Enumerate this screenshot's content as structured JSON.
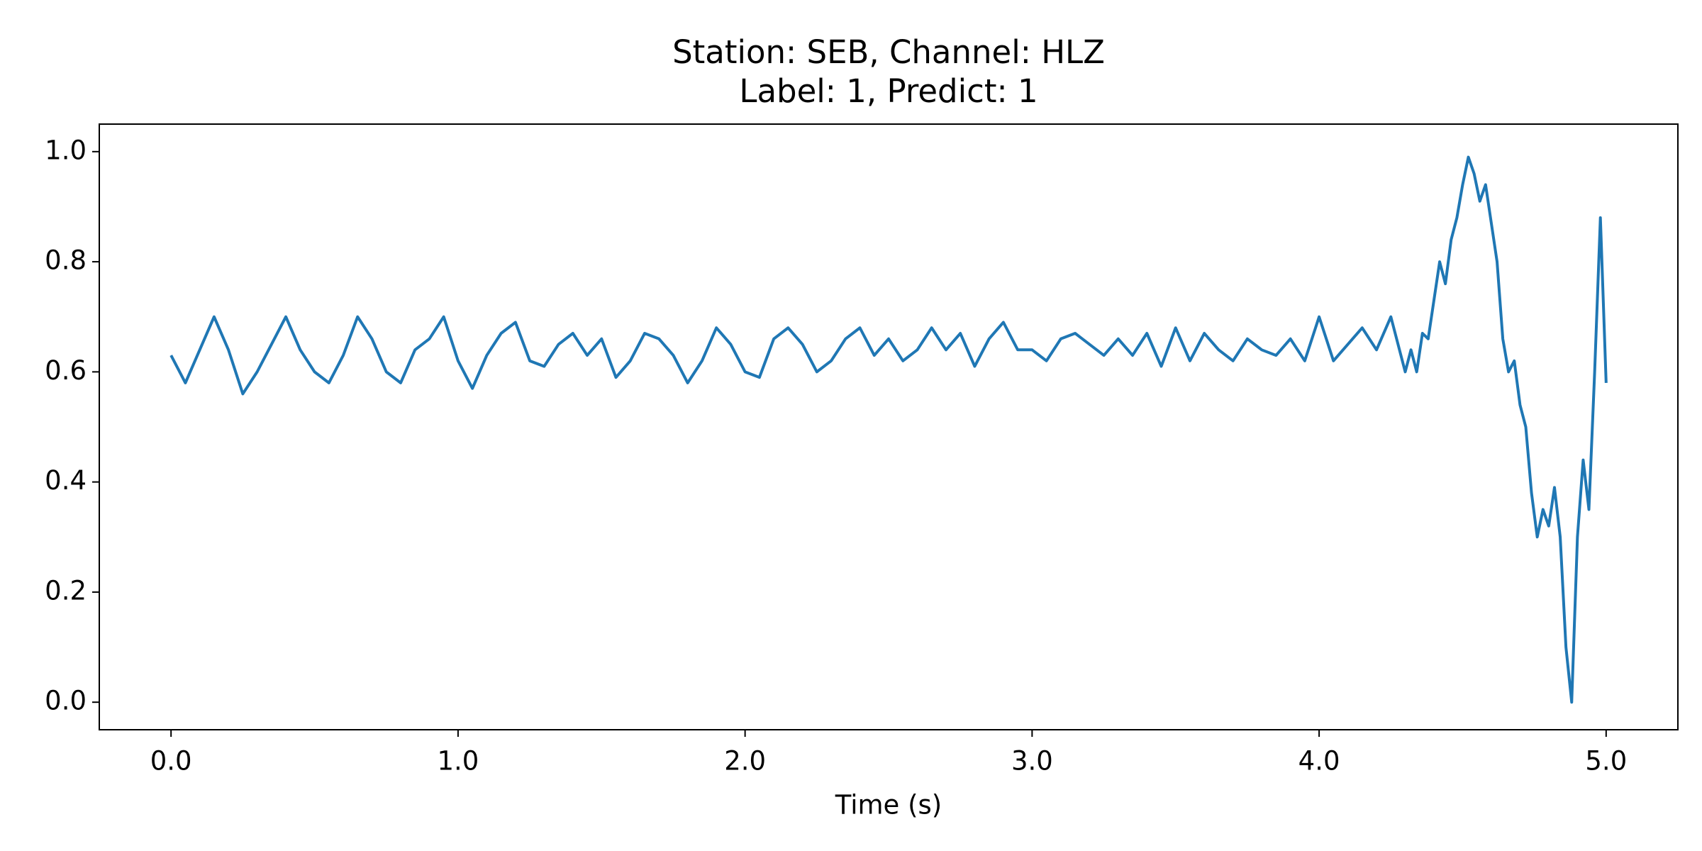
{
  "chart_data": {
    "type": "line",
    "title": "Station: SEB, Channel: HLZ",
    "subtitle": "Label: 1, Predict: 1",
    "x_label": "Time (s)",
    "xlim": [
      -0.25,
      5.25
    ],
    "ylim": [
      -0.05,
      1.05
    ],
    "xticks": [
      {
        "value": 0,
        "label": "0.0"
      },
      {
        "value": 1,
        "label": "1.0"
      },
      {
        "value": 2,
        "label": "2.0"
      },
      {
        "value": 3,
        "label": "3.0"
      },
      {
        "value": 4,
        "label": "4.0"
      },
      {
        "value": 5,
        "label": "5.0"
      }
    ],
    "yticks": [
      {
        "value": 0,
        "label": "0.0"
      },
      0.2,
      0.4,
      0.6,
      0.8,
      {
        "value": 1,
        "label": "1.0"
      }
    ],
    "grid": false,
    "series": [
      {
        "color": "#1f77b4",
        "x": [
          0,
          0.05,
          0.1,
          0.15,
          0.2,
          0.25,
          0.3,
          0.35,
          0.4,
          0.45,
          0.5,
          0.55,
          0.6,
          0.65,
          0.7,
          0.75,
          0.8,
          0.85,
          0.9,
          0.95,
          1,
          1.05,
          1.1,
          1.15,
          1.2,
          1.25,
          1.3,
          1.35,
          1.4,
          1.45,
          1.5,
          1.55,
          1.6,
          1.65,
          1.7,
          1.75,
          1.8,
          1.85,
          1.9,
          1.95,
          2,
          2.05,
          2.1,
          2.15,
          2.2,
          2.25,
          2.3,
          2.35,
          2.4,
          2.45,
          2.5,
          2.55,
          2.6,
          2.65,
          2.7,
          2.75,
          2.8,
          2.85,
          2.9,
          2.95,
          3,
          3.05,
          3.1,
          3.15,
          3.2,
          3.25,
          3.3,
          3.35,
          3.4,
          3.45,
          3.5,
          3.55,
          3.6,
          3.65,
          3.7,
          3.75,
          3.8,
          3.85,
          3.9,
          3.95,
          4,
          4.05,
          4.1,
          4.15,
          4.2,
          4.25,
          4.3,
          4.32,
          4.34,
          4.36,
          4.38,
          4.4,
          4.42,
          4.44,
          4.46,
          4.48,
          4.5,
          4.52,
          4.54,
          4.56,
          4.58,
          4.6,
          4.62,
          4.64,
          4.66,
          4.68,
          4.7,
          4.72,
          4.74,
          4.76,
          4.78,
          4.8,
          4.82,
          4.84,
          4.86,
          4.88,
          4.9,
          4.92,
          4.94,
          4.96,
          4.98,
          5
        ],
        "values": [
          0.63,
          0.58,
          0.64,
          0.7,
          0.64,
          0.56,
          0.6,
          0.65,
          0.7,
          0.64,
          0.6,
          0.58,
          0.63,
          0.7,
          0.66,
          0.6,
          0.58,
          0.64,
          0.66,
          0.7,
          0.62,
          0.57,
          0.63,
          0.67,
          0.69,
          0.62,
          0.61,
          0.65,
          0.67,
          0.63,
          0.66,
          0.59,
          0.62,
          0.67,
          0.66,
          0.63,
          0.58,
          0.62,
          0.68,
          0.65,
          0.6,
          0.59,
          0.66,
          0.68,
          0.65,
          0.6,
          0.62,
          0.66,
          0.68,
          0.63,
          0.66,
          0.62,
          0.64,
          0.68,
          0.64,
          0.67,
          0.61,
          0.66,
          0.69,
          0.64,
          0.64,
          0.62,
          0.66,
          0.67,
          0.65,
          0.63,
          0.66,
          0.63,
          0.67,
          0.61,
          0.68,
          0.62,
          0.67,
          0.64,
          0.62,
          0.66,
          0.64,
          0.63,
          0.66,
          0.62,
          0.7,
          0.62,
          0.65,
          0.68,
          0.64,
          0.7,
          0.6,
          0.64,
          0.6,
          0.67,
          0.66,
          0.73,
          0.8,
          0.76,
          0.84,
          0.88,
          0.94,
          0.99,
          0.96,
          0.91,
          0.94,
          0.87,
          0.8,
          0.66,
          0.6,
          0.62,
          0.54,
          0.5,
          0.38,
          0.3,
          0.35,
          0.32,
          0.39,
          0.3,
          0.1,
          0,
          0.3,
          0.44,
          0.35,
          0.6,
          0.88,
          0.58
        ]
      }
    ]
  }
}
